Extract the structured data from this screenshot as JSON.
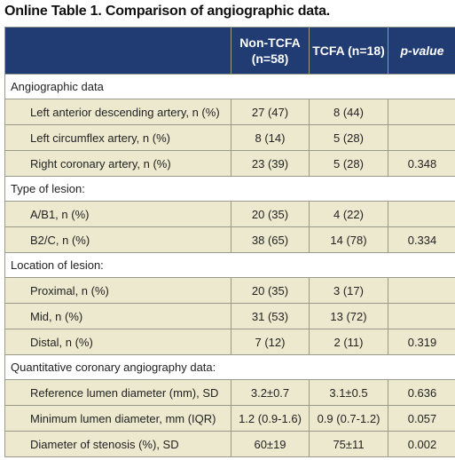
{
  "title": "Online Table 1. Comparison of angiographic data.",
  "header": {
    "col1": "",
    "col2": "Non-TCFA (n=58)",
    "col3": "TCFA (n=18)",
    "col4": "p-value"
  },
  "sections": [
    {
      "label": "Angiographic data",
      "rows": [
        {
          "label": "Left anterior descending artery, n (%)",
          "non_tcfa": "27 (47)",
          "tcfa": "8 (44)",
          "p": ""
        },
        {
          "label": "Left circumflex artery, n (%)",
          "non_tcfa": "8 (14)",
          "tcfa": "5 (28)",
          "p": ""
        },
        {
          "label": "Right coronary artery, n (%)",
          "non_tcfa": "23 (39)",
          "tcfa": "5 (28)",
          "p": "0.348"
        }
      ]
    },
    {
      "label": "Type of lesion:",
      "rows": [
        {
          "label": "A/B1, n (%)",
          "non_tcfa": "20 (35)",
          "tcfa": "4 (22)",
          "p": ""
        },
        {
          "label": "B2/C, n (%)",
          "non_tcfa": "38 (65)",
          "tcfa": "14 (78)",
          "p": "0.334"
        }
      ]
    },
    {
      "label": "Location of lesion:",
      "rows": [
        {
          "label": "Proximal, n (%)",
          "non_tcfa": "20 (35)",
          "tcfa": "3 (17)",
          "p": ""
        },
        {
          "label": "Mid, n (%)",
          "non_tcfa": "31 (53)",
          "tcfa": "13 (72)",
          "p": ""
        },
        {
          "label": "Distal, n (%)",
          "non_tcfa": "7 (12)",
          "tcfa": "2 (11)",
          "p": "0.319"
        }
      ]
    },
    {
      "label": "Quantitative coronary angiography data:",
      "rows": [
        {
          "label": "Reference lumen diameter (mm), SD",
          "non_tcfa": "3.2±0.7",
          "tcfa": "3.1±0.5",
          "p": "0.636"
        },
        {
          "label": "Minimum lumen diameter, mm (IQR)",
          "non_tcfa": "1.2 (0.9-1.6)",
          "tcfa": "0.9 (0.7-1.2)",
          "p": "0.057"
        },
        {
          "label": "Diameter of stenosis (%), SD",
          "non_tcfa": "60±19",
          "tcfa": "75±11",
          "p": "0.002"
        }
      ]
    }
  ],
  "colors": {
    "header_bg": "#213b73",
    "row_bg": "#ede9cf",
    "border": "#9a9a8a"
  }
}
